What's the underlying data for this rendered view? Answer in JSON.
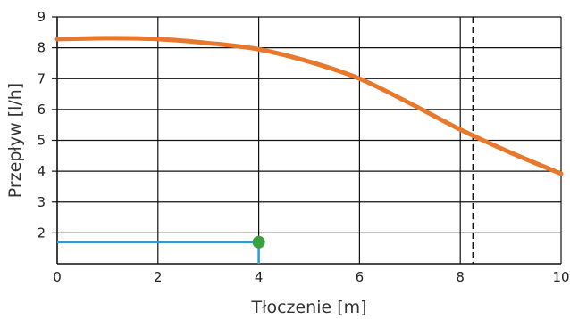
{
  "chart_data": {
    "type": "line",
    "xlabel": "Tłoczenie [m]",
    "ylabel": "Przepływ [l/h]",
    "xlim": [
      0,
      10
    ],
    "ylim": [
      1,
      9
    ],
    "x_ticks": [
      0,
      2,
      4,
      6,
      8,
      10
    ],
    "y_ticks": [
      2,
      3,
      4,
      5,
      6,
      7,
      8,
      9
    ],
    "x_tick_labels": [
      "0",
      "2",
      "4",
      "6",
      "8",
      "10"
    ],
    "y_tick_labels": [
      "2",
      "3",
      "4",
      "5",
      "6",
      "7",
      "8",
      "9"
    ],
    "vertical_gridlines_x": [
      2,
      4,
      6,
      8,
      10
    ],
    "horizontal_gridlines_y": [
      2,
      3,
      4,
      5,
      6,
      7,
      8,
      9
    ],
    "dashed_reference_x": 8.25,
    "grid": true,
    "series": [
      {
        "color": "#e8782c",
        "x": [
          0,
          1,
          2,
          3,
          4,
          5,
          6,
          7,
          8,
          9,
          10
        ],
        "y": [
          8.28,
          8.31,
          8.28,
          8.15,
          7.95,
          7.55,
          7.0,
          6.2,
          5.35,
          4.6,
          3.92
        ]
      }
    ],
    "operating_point": {
      "x": 4,
      "y": 1.7,
      "marker_color": "#3aa040",
      "guide_color": "#2f9bd6"
    }
  }
}
